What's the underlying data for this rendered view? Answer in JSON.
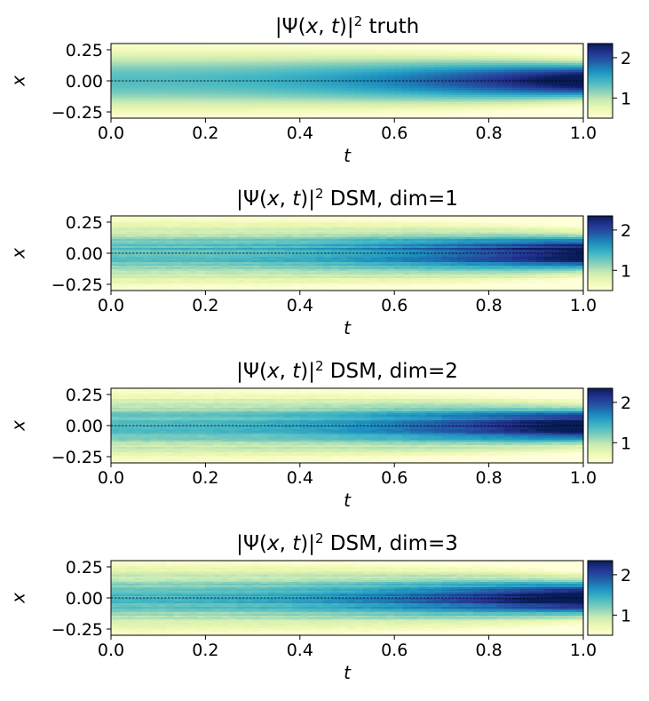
{
  "chart_data": [
    {
      "type": "heatmap",
      "title_prefix": "|Ψ(",
      "title_x": "x",
      "title_comma": ", ",
      "title_t": "t",
      "title_close": ")|",
      "title_exp": "2",
      "title_suffix": " truth",
      "xlabel": "t",
      "ylabel": "x",
      "xlim": [
        0.0,
        1.0
      ],
      "ylim": [
        -0.3,
        0.3
      ],
      "xticks": [
        "0.0",
        "0.2",
        "0.4",
        "0.6",
        "0.8",
        "1.0"
      ],
      "yticks": [
        "0.25",
        "0.00",
        "−0.25"
      ],
      "cbar_ticks": [
        "2",
        "1"
      ],
      "cbar_range": [
        0.5,
        2.35
      ],
      "noise": 0.0,
      "reference_line": "x = 0 (dashed)"
    },
    {
      "type": "heatmap",
      "title_prefix": "|Ψ(",
      "title_x": "x",
      "title_comma": ", ",
      "title_t": "t",
      "title_close": ")|",
      "title_exp": "2",
      "title_suffix": " DSM, dim=1",
      "xlabel": "t",
      "ylabel": "x",
      "xlim": [
        0.0,
        1.0
      ],
      "ylim": [
        -0.3,
        0.3
      ],
      "xticks": [
        "0.0",
        "0.2",
        "0.4",
        "0.6",
        "0.8",
        "1.0"
      ],
      "yticks": [
        "0.25",
        "0.00",
        "−0.25"
      ],
      "cbar_ticks": [
        "2",
        "1"
      ],
      "cbar_range": [
        0.5,
        2.35
      ],
      "noise": 0.12,
      "reference_line": "x = 0 (dashed)"
    },
    {
      "type": "heatmap",
      "title_prefix": "|Ψ(",
      "title_x": "x",
      "title_comma": ", ",
      "title_t": "t",
      "title_close": ")|",
      "title_exp": "2",
      "title_suffix": " DSM, dim=2",
      "xlabel": "t",
      "ylabel": "x",
      "xlim": [
        0.0,
        1.0
      ],
      "ylim": [
        -0.3,
        0.3
      ],
      "xticks": [
        "0.0",
        "0.2",
        "0.4",
        "0.6",
        "0.8",
        "1.0"
      ],
      "yticks": [
        "0.25",
        "0.00",
        "−0.25"
      ],
      "cbar_ticks": [
        "2",
        "1"
      ],
      "cbar_range": [
        0.5,
        2.35
      ],
      "noise": 0.12,
      "reference_line": "x = 0 (dashed)"
    },
    {
      "type": "heatmap",
      "title_prefix": "|Ψ(",
      "title_x": "x",
      "title_comma": ", ",
      "title_t": "t",
      "title_close": ")|",
      "title_exp": "2",
      "title_suffix": " DSM, dim=3",
      "xlabel": "t",
      "ylabel": "x",
      "xlim": [
        0.0,
        1.0
      ],
      "ylim": [
        -0.3,
        0.3
      ],
      "xticks": [
        "0.0",
        "0.2",
        "0.4",
        "0.6",
        "0.8",
        "1.0"
      ],
      "yticks": [
        "0.25",
        "0.00",
        "−0.25"
      ],
      "cbar_ticks": [
        "2",
        "1"
      ],
      "cbar_range": [
        0.5,
        2.35
      ],
      "noise": 0.12,
      "reference_line": "x = 0 (dashed)"
    }
  ],
  "colormap": [
    "#ffffd9",
    "#edf8b1",
    "#c7e9b4",
    "#7fcdbb",
    "#41b6c4",
    "#1d91c0",
    "#225ea8",
    "#253494",
    "#081d58"
  ]
}
